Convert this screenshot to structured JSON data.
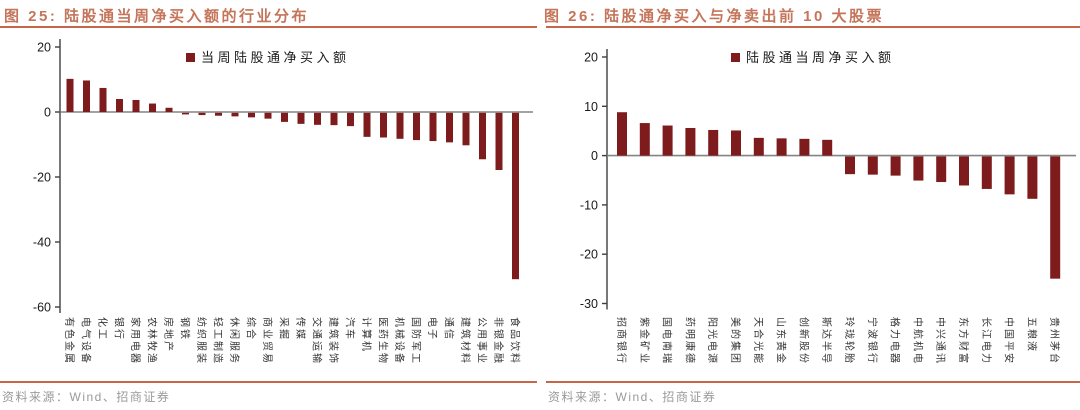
{
  "colors": {
    "bar": "#7E1B1D",
    "accent": "#C56748",
    "title_text": "#C4755A",
    "axis_dark": "#3f3f3f",
    "axis_gray": "#848484",
    "source_gray": "#9a9a9a"
  },
  "figures": [
    {
      "title": "图 25: 陆股通当周净买入额的行业分布",
      "legend": "当周陆股通净买入额",
      "source": "资料来源：Wind、招商证券"
    },
    {
      "title": "图 26: 陆股通净买入与净卖出前 10 大股票",
      "legend": "陆股通当周净买入额",
      "source": "资料来源：Wind、招商证券"
    }
  ],
  "chart_data": [
    {
      "type": "bar",
      "title": "图 25: 陆股通当周净买入额的行业分布",
      "legend": [
        "当周陆股通净买入额"
      ],
      "legend_position": "top",
      "grid": false,
      "categories": [
        "有色金属",
        "电气设备",
        "化工",
        "银行",
        "家用电器",
        "农林牧渔",
        "房地产",
        "钢铁",
        "纺织服装",
        "轻工制造",
        "休闲服务",
        "综合",
        "商业贸易",
        "采掘",
        "传媒",
        "交通运输",
        "建筑装饰",
        "汽车",
        "计算机",
        "医药生物",
        "机械设备",
        "国防军工",
        "电子",
        "通信",
        "建筑材料",
        "公用事业",
        "非银金融",
        "食品饮料"
      ],
      "values": [
        10.2,
        9.7,
        7.4,
        4.0,
        3.7,
        2.6,
        1.3,
        -0.5,
        -0.7,
        -0.9,
        -1.1,
        -1.4,
        -1.8,
        -2.8,
        -3.4,
        -3.7,
        -3.8,
        -4.1,
        -7.4,
        -7.6,
        -8.0,
        -8.4,
        -8.7,
        -9.1,
        -10.0,
        -14.3,
        -17.6,
        -51.2
      ],
      "yticks": [
        20,
        0,
        -20,
        -40,
        -60
      ],
      "ylim": [
        -60,
        20
      ],
      "bar_color": "#7E1B1D"
    },
    {
      "type": "bar",
      "title": "图 26: 陆股通净买入与净卖出前 10 大股票",
      "legend": [
        "陆股通当周净买入额"
      ],
      "legend_position": "top",
      "grid": false,
      "categories": [
        "招商银行",
        "紫金矿业",
        "国电南瑞",
        "药明康德",
        "阳光电源",
        "美的集团",
        "天合光能",
        "山东黄金",
        "创新股份",
        "斯达半导",
        "玲珑轮胎",
        "宁波银行",
        "格力电器",
        "中航机电",
        "中兴通讯",
        "东方财富",
        "长江电力",
        "中国平安",
        "五粮液",
        "贵州茅台"
      ],
      "values": [
        8.8,
        6.6,
        6.1,
        5.6,
        5.2,
        5.1,
        3.6,
        3.5,
        3.4,
        3.2,
        -3.6,
        -3.7,
        -3.9,
        -4.9,
        -5.2,
        -5.9,
        -6.6,
        -7.7,
        -8.6,
        -24.8
      ],
      "yticks": [
        20,
        10,
        0,
        -10,
        -20,
        -30
      ],
      "ylim": [
        -30,
        20
      ],
      "bar_color": "#7E1B1D"
    }
  ]
}
